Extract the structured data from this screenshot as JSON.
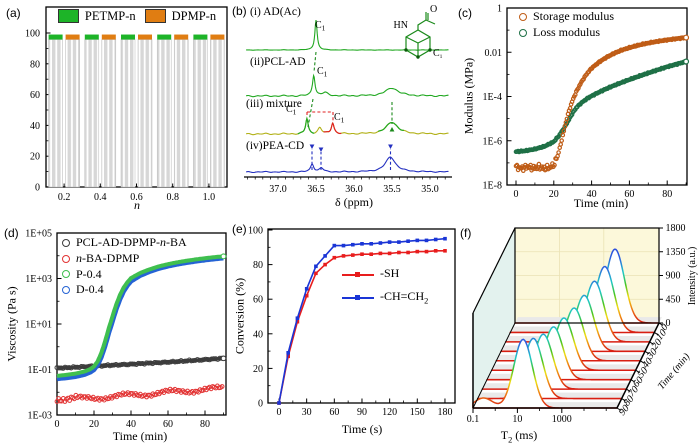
{
  "panels": {
    "a": {
      "label": "(a)",
      "xlabel": "n",
      "yticks": [
        "0",
        "20",
        "40",
        "60",
        "80",
        "100"
      ]
    },
    "b": {
      "label": "(b)",
      "xlabel": "δ (ppm)",
      "xticks": [
        "37.0",
        "36.5",
        "36.0",
        "35.5",
        "35.0"
      ],
      "trace_labels": [
        "(i) AD(Ac)",
        "(ii)PCL-AD",
        "(iii) mixture",
        "(iv)PEA-CD"
      ],
      "peak_label": {
        "text": "C",
        "sub": "1"
      }
    },
    "c": {
      "label": "(c)",
      "ylabel": "Modulus (MPa)",
      "xlabel": "Time (min)",
      "yticks": [
        "1",
        "0.01",
        "1E-4",
        "1E-6",
        "1E-8"
      ],
      "xticks": [
        "0",
        "20",
        "40",
        "60",
        "80"
      ],
      "legend": [
        "Storage modulus",
        "Loss modulus"
      ]
    },
    "d": {
      "label": "(d)",
      "ylabel": "Viscosity (Pa s)",
      "xlabel": "Time (min)",
      "yticks": [
        "1E+05",
        "1E+03",
        "1E+01",
        "1E-01",
        "1E-03"
      ],
      "xticks": [
        "0",
        "20",
        "40",
        "60",
        "80"
      ],
      "legend": [
        {
          "pre": "PCL-AD-DPMP-",
          "it": "n",
          "post": "-BA"
        },
        {
          "pre": "",
          "it": "n",
          "post": "-BA-DPMP"
        },
        {
          "pre": "P-0.4",
          "it": "",
          "post": ""
        },
        {
          "pre": "D-0.4",
          "it": "",
          "post": ""
        }
      ]
    },
    "e": {
      "label": "(e)",
      "ylabel": "Conversion (%)",
      "xlabel": "Time (s)",
      "yticks": [
        "0",
        "20",
        "40",
        "60",
        "80",
        "100"
      ],
      "xticks": [
        "0",
        "30",
        "60",
        "90",
        "120",
        "150",
        "180"
      ],
      "legend": [
        {
          "pre": "-SH",
          "sub": ""
        },
        {
          "pre": "-CH=CH",
          "sub": "2"
        }
      ]
    },
    "f": {
      "label": "(f)",
      "xlabel": {
        "main": "T",
        "sub": "2",
        "rest": " (ms)"
      },
      "time_label": "Time (min)",
      "zlabel": "Intensity (a.u.)",
      "xticks": [
        "0.1",
        "10",
        "1000"
      ],
      "zticks": [
        "0",
        "450",
        "900",
        "1350",
        "1800"
      ],
      "tticks": [
        "0",
        "10",
        "20",
        "30",
        "40",
        "50",
        "60",
        "70",
        "80",
        "90"
      ]
    }
  },
  "chart_data": {
    "a": {
      "type": "bar",
      "categories": [
        "0.2",
        "0.4",
        "0.6",
        "0.8",
        "1.0"
      ],
      "ylim": [
        0,
        100
      ],
      "xlabel": "n",
      "series": [
        {
          "name": "PETMP-n",
          "color": "#1db428",
          "values": [
            99,
            99,
            99,
            99,
            99
          ]
        },
        {
          "name": "DPMP-n",
          "color": "#e07d12",
          "values": [
            99,
            99,
            99,
            99,
            99
          ]
        }
      ]
    },
    "b": {
      "type": "line",
      "xlabel": "δ (ppm)",
      "xlim": [
        37.45,
        34.72
      ],
      "traces": [
        {
          "name": "AD(Ac)",
          "color": "#21a821",
          "base": 50,
          "noise": 0.22,
          "peaks": [
            {
              "x": 36.5,
              "h": 30,
              "w": 0.018
            }
          ]
        },
        {
          "name": "PCL-AD",
          "color": "#21a821",
          "base": 96,
          "noise": 0.75,
          "peaks": [
            {
              "x": 36.53,
              "h": 21,
              "w": 0.02
            },
            {
              "x": 36.38,
              "h": 3,
              "w": 0.05
            },
            {
              "x": 35.5,
              "h": 8,
              "w": 0.1
            }
          ]
        },
        {
          "name": "mixture",
          "color": "#b2b118",
          "base": 134,
          "noise": 0.75,
          "peaks": [
            {
              "x": 36.62,
              "h": 15,
              "w": 0.02
            },
            {
              "x": 36.45,
              "h": 6,
              "w": 0.03
            },
            {
              "x": 36.28,
              "h": 11,
              "w": 0.022
            },
            {
              "x": 35.5,
              "h": 12,
              "w": 0.09
            }
          ],
          "overlays": [
            {
              "color": "#21a821",
              "range": [
                36.74,
                36.52
              ]
            },
            {
              "color": "#e02222",
              "range": [
                36.4,
                36.16
              ]
            },
            {
              "color": "#21a821",
              "range": [
                35.68,
                35.34
              ]
            }
          ]
        },
        {
          "name": "PEA-CD",
          "color": "#2430c0",
          "base": 172,
          "noise": 0.55,
          "peaks": [
            {
              "x": 36.55,
              "h": 8,
              "w": 0.025
            },
            {
              "x": 36.43,
              "h": 4,
              "w": 0.03
            },
            {
              "x": 35.52,
              "h": 15,
              "w": 0.08
            }
          ]
        }
      ]
    },
    "c": {
      "type": "scatter",
      "ylog": true,
      "ylim": [
        1e-08,
        1
      ],
      "xlim": [
        0,
        92
      ],
      "series": [
        {
          "name": "Storage modulus",
          "color": "#bf5c16",
          "points": [
            [
              0,
              6.5e-08
            ],
            [
              3,
              5.6e-08
            ],
            [
              6,
              6.8e-08
            ],
            [
              9,
              5.8e-08
            ],
            [
              12,
              6.5e-08
            ],
            [
              15,
              5.6e-08
            ],
            [
              18,
              6.2e-08
            ],
            [
              20,
              8e-08
            ],
            [
              22,
              2e-07
            ],
            [
              24,
              9e-07
            ],
            [
              26,
              5e-06
            ],
            [
              28,
              2.2e-05
            ],
            [
              30,
              7e-05
            ],
            [
              32,
              0.00017
            ],
            [
              34,
              0.00036
            ],
            [
              36,
              0.0007
            ],
            [
              38,
              0.0012
            ],
            [
              40,
              0.0019
            ],
            [
              44,
              0.0036
            ],
            [
              48,
              0.006
            ],
            [
              52,
              0.009
            ],
            [
              56,
              0.0125
            ],
            [
              60,
              0.016
            ],
            [
              64,
              0.02
            ],
            [
              68,
              0.024
            ],
            [
              72,
              0.028
            ],
            [
              76,
              0.032
            ],
            [
              80,
              0.036
            ],
            [
              84,
              0.04
            ],
            [
              87,
              0.043
            ],
            [
              90,
              0.046
            ]
          ]
        },
        {
          "name": "Loss modulus",
          "color": "#1e7046",
          "points": [
            [
              0,
              3.2e-07
            ],
            [
              5,
              3.5e-07
            ],
            [
              10,
              4.2e-07
            ],
            [
              15,
              5.5e-07
            ],
            [
              20,
              9e-07
            ],
            [
              23,
              1.8e-06
            ],
            [
              26,
              4.5e-06
            ],
            [
              28,
              9e-06
            ],
            [
              30,
              1.8e-05
            ],
            [
              32,
              3.2e-05
            ],
            [
              35,
              5.5e-05
            ],
            [
              38,
              8.5e-05
            ],
            [
              42,
              0.00013
            ],
            [
              46,
              0.00019
            ],
            [
              50,
              0.00027
            ],
            [
              55,
              0.0004
            ],
            [
              60,
              0.00058
            ],
            [
              65,
              0.00082
            ],
            [
              70,
              0.00115
            ],
            [
              75,
              0.0016
            ],
            [
              80,
              0.0022
            ],
            [
              85,
              0.0029
            ],
            [
              90,
              0.0038
            ]
          ]
        }
      ]
    },
    "d": {
      "type": "scatter",
      "ylog": true,
      "ylim": [
        0.001,
        100000.0
      ],
      "xlim": [
        0,
        92
      ],
      "series": [
        {
          "name": "PCL-AD-DPMP-n-BA",
          "color": "#3d3d3d",
          "style": "band",
          "points": [
            [
              0,
              0.115
            ],
            [
              10,
              0.125
            ],
            [
              20,
              0.14
            ],
            [
              30,
              0.155
            ],
            [
              40,
              0.17
            ],
            [
              50,
              0.19
            ],
            [
              60,
              0.21
            ],
            [
              70,
              0.24
            ],
            [
              80,
              0.27
            ],
            [
              90,
              0.31
            ]
          ]
        },
        {
          "name": "n-BA-DPMP",
          "color": "#e23333",
          "style": "dots",
          "points": [
            [
              0,
              0.006
            ],
            [
              10,
              0.005
            ],
            [
              20,
              0.0055
            ],
            [
              30,
              0.0065
            ],
            [
              40,
              0.0075
            ],
            [
              50,
              0.0085
            ],
            [
              60,
              0.01
            ],
            [
              70,
              0.0115
            ],
            [
              80,
              0.013
            ],
            [
              90,
              0.015
            ]
          ]
        },
        {
          "name": "P-0.4",
          "color": "#3fbf4f",
          "style": "line",
          "points": [
            [
              0,
              0.048
            ],
            [
              5,
              0.053
            ],
            [
              10,
              0.06
            ],
            [
              15,
              0.075
            ],
            [
              18,
              0.095
            ],
            [
              20,
              0.125
            ],
            [
              22,
              0.21
            ],
            [
              24,
              0.5
            ],
            [
              26,
              1.6
            ],
            [
              28,
              6
            ],
            [
              30,
              20
            ],
            [
              32,
              65
            ],
            [
              34,
              170
            ],
            [
              36,
              360
            ],
            [
              38,
              620
            ],
            [
              40,
              950
            ],
            [
              45,
              1600
            ],
            [
              50,
              2300
            ],
            [
              55,
              3100
            ],
            [
              60,
              3900
            ],
            [
              65,
              4700
            ],
            [
              70,
              5500
            ],
            [
              75,
              6300
            ],
            [
              80,
              7100
            ],
            [
              85,
              7900
            ],
            [
              90,
              8600
            ]
          ]
        },
        {
          "name": "D-0.4",
          "color": "#2563d4",
          "style": "line",
          "points": [
            [
              0,
              0.042
            ],
            [
              5,
              0.046
            ],
            [
              10,
              0.052
            ],
            [
              15,
              0.065
            ],
            [
              18,
              0.082
            ],
            [
              20,
              0.105
            ],
            [
              22,
              0.17
            ],
            [
              24,
              0.38
            ],
            [
              26,
              1.15
            ],
            [
              28,
              4.3
            ],
            [
              30,
              14
            ],
            [
              32,
              47
            ],
            [
              34,
              128
            ],
            [
              36,
              290
            ],
            [
              38,
              520
            ],
            [
              40,
              820
            ],
            [
              45,
              1450
            ],
            [
              50,
              2150
            ],
            [
              55,
              2950
            ],
            [
              60,
              3750
            ],
            [
              65,
              4550
            ],
            [
              70,
              5350
            ],
            [
              75,
              6150
            ],
            [
              80,
              6950
            ],
            [
              85,
              7750
            ],
            [
              90,
              8500
            ]
          ]
        }
      ]
    },
    "e": {
      "type": "line",
      "ylim": [
        0,
        100
      ],
      "xlim": [
        0,
        180
      ],
      "x": [
        0,
        10,
        20,
        30,
        40,
        50,
        60,
        70,
        80,
        90,
        100,
        110,
        120,
        130,
        140,
        150,
        160,
        170,
        180
      ],
      "series": [
        {
          "name": "-SH",
          "color": "#e81d1d",
          "values": [
            0,
            27,
            47,
            62,
            75,
            80,
            84,
            85,
            85.5,
            86,
            86,
            86.5,
            86.5,
            87,
            87,
            87.5,
            87.5,
            88,
            88
          ]
        },
        {
          "name": "-CH=CH2",
          "color": "#1a35d6",
          "values": [
            0,
            29,
            49,
            66,
            79,
            85,
            91,
            91,
            91.5,
            92,
            92,
            92.5,
            93,
            93,
            93.5,
            94,
            94,
            94.5,
            95
          ]
        }
      ]
    },
    "f": {
      "type": "waterfall3d",
      "zlim": [
        0,
        1800
      ],
      "t2_log_range": [
        -1,
        5.5
      ],
      "sigma_decades": 0.42,
      "colormap": [
        [
          0,
          "#d81d12"
        ],
        [
          0.14,
          "#ee7312"
        ],
        [
          0.27,
          "#f0dc12"
        ],
        [
          0.4,
          "#47c520"
        ],
        [
          0.53,
          "#1fc9c6"
        ],
        [
          0.68,
          "#2e62e0"
        ],
        [
          1,
          "#2020d8"
        ]
      ],
      "slices": [
        {
          "time": 0,
          "t2_ms": 3200,
          "intensity": 1400
        },
        {
          "time": 10,
          "t2_ms": 1800,
          "intensity": 1250
        },
        {
          "time": 20,
          "t2_ms": 1000,
          "intensity": 1150
        },
        {
          "time": 30,
          "t2_ms": 560,
          "intensity": 1060
        },
        {
          "time": 40,
          "t2_ms": 320,
          "intensity": 1000
        },
        {
          "time": 50,
          "t2_ms": 180,
          "intensity": 990
        },
        {
          "time": 60,
          "t2_ms": 100,
          "intensity": 1000
        },
        {
          "time": 70,
          "t2_ms": 56,
          "intensity": 1040
        },
        {
          "time": 80,
          "t2_ms": 32,
          "intensity": 1140
        },
        {
          "time": 90,
          "t2_ms": 18,
          "intensity": 1300,
          "extra_t2_ms": 0.3,
          "extra_intensity": 190
        }
      ]
    }
  }
}
